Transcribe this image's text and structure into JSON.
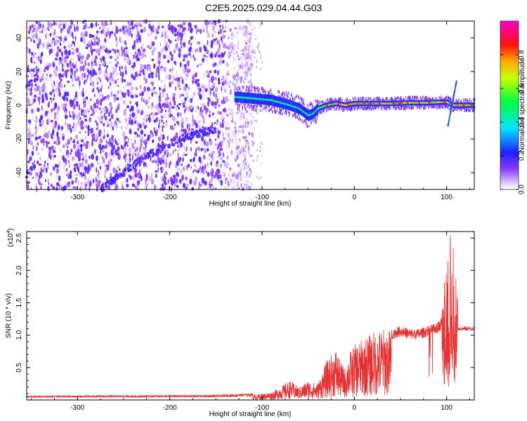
{
  "title": "C2E5.2025.029.04.44.G03",
  "colors": {
    "snr_line": "#e83030",
    "axis": "#000000"
  },
  "chart_data": [
    {
      "type": "heatmap",
      "xlabel": "Height of straight line (km)",
      "ylabel": "Frequency (Hz)",
      "xlim": [
        -355,
        130
      ],
      "ylim": [
        -50,
        50
      ],
      "x_ticks": [
        -300,
        -200,
        -100,
        0,
        100
      ],
      "x_tick_labels": [
        "-300",
        "-200",
        "-100",
        "0",
        "100"
      ],
      "y_ticks": [
        -40,
        -20,
        0,
        20,
        40
      ],
      "y_tick_labels": [
        "-40",
        "-20",
        "0",
        "20",
        "40"
      ],
      "colorbar": {
        "label": "Normalized spectral amplitude",
        "range": [
          0,
          1
        ],
        "ticks": [
          0.0,
          0.2,
          0.4,
          0.6,
          0.8
        ],
        "tick_labels": [
          "0.0",
          "0.2",
          "0.4",
          "0.6",
          "0.8"
        ],
        "colormap": "rainbow (white-purple-blue-cyan-green-yellow-red-magenta)"
      },
      "ridge": {
        "x": [
          -130,
          -110,
          -90,
          -70,
          -60,
          -50,
          -45,
          -40,
          -30,
          -20,
          -10,
          0,
          20,
          40,
          60,
          80,
          100,
          105,
          110,
          130
        ],
        "freq": [
          5,
          4,
          3,
          0,
          -2,
          -6,
          -5,
          -2,
          0,
          1,
          0,
          1,
          1,
          1,
          1.5,
          1.5,
          2,
          0,
          0,
          0
        ],
        "noise_region_end_x": -120,
        "diagonal_trace": {
          "x": [
            -275,
            -230,
            -190,
            -150
          ],
          "freq": [
            -50,
            -32,
            -20,
            -14
          ]
        }
      }
    },
    {
      "type": "line",
      "xlabel": "Height of straight line (km)",
      "ylabel": "SNR (10 * v/v)",
      "y_multiplier_label": "(x10",
      "y_multiplier_exponent": "4",
      "y_multiplier_close": ")",
      "xlim": [
        -355,
        130
      ],
      "ylim": [
        0,
        26000
      ],
      "x_ticks": [
        -300,
        -200,
        -100,
        0,
        100
      ],
      "x_tick_labels": [
        "-300",
        "-200",
        "-100",
        "0",
        "100"
      ],
      "y_ticks": [
        5000,
        10000,
        15000,
        20000,
        25000
      ],
      "y_tick_labels": [
        "0.5",
        "1.0",
        "1.5",
        "2.0",
        "2.5"
      ],
      "grid": false,
      "series": [
        {
          "envelope_x": [
            -355,
            -150,
            -110,
            -100,
            -90,
            -80,
            -70,
            -60,
            -50,
            -40,
            -30,
            -25,
            -20,
            -15,
            -10,
            -5,
            0,
            10,
            20,
            30,
            40,
            50,
            60,
            70,
            80,
            90,
            95,
            100,
            105,
            110,
            112,
            120,
            130
          ],
          "envelope_y": [
            500,
            600,
            800,
            1000,
            1200,
            2000,
            3000,
            2000,
            3000,
            2500,
            6000,
            7000,
            8000,
            6000,
            5000,
            7500,
            8500,
            9500,
            10500,
            11000,
            11000,
            11500,
            11000,
            11000,
            11500,
            12000,
            13000,
            14000,
            19000,
            14000,
            11000,
            11000,
            11000
          ]
        }
      ]
    }
  ]
}
